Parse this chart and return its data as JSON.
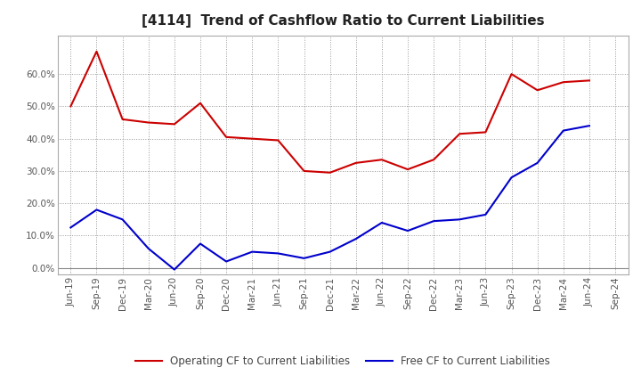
{
  "title": "[4114]  Trend of Cashflow Ratio to Current Liabilities",
  "x_labels": [
    "Jun-19",
    "Sep-19",
    "Dec-19",
    "Mar-20",
    "Jun-20",
    "Sep-20",
    "Dec-20",
    "Mar-21",
    "Jun-21",
    "Sep-21",
    "Dec-21",
    "Mar-22",
    "Jun-22",
    "Sep-22",
    "Dec-22",
    "Mar-23",
    "Jun-23",
    "Sep-23",
    "Dec-23",
    "Mar-24",
    "Jun-24",
    "Sep-24"
  ],
  "operating_cf": [
    50.0,
    67.0,
    46.0,
    45.0,
    44.5,
    51.0,
    40.5,
    40.0,
    39.5,
    30.0,
    29.5,
    32.5,
    33.5,
    30.5,
    33.5,
    41.5,
    42.0,
    60.0,
    55.0,
    57.5,
    58.0,
    null
  ],
  "free_cf": [
    12.5,
    18.0,
    15.0,
    6.0,
    -0.5,
    7.5,
    2.0,
    5.0,
    4.5,
    3.0,
    5.0,
    9.0,
    14.0,
    11.5,
    14.5,
    15.0,
    16.5,
    28.0,
    32.5,
    42.5,
    44.0,
    null
  ],
  "ylim": [
    -2,
    72
  ],
  "yticks": [
    0.0,
    10.0,
    20.0,
    30.0,
    40.0,
    50.0,
    60.0
  ],
  "line_color_operating": "#cc0000",
  "line_color_free": "#0000cc",
  "legend_operating": "Operating CF to Current Liabilities",
  "legend_free": "Free CF to Current Liabilities",
  "background_color": "#ffffff",
  "plot_bg_color": "#ffffff",
  "grid_color": "#999999",
  "title_fontsize": 11,
  "tick_fontsize": 7.5,
  "legend_fontsize": 8.5
}
